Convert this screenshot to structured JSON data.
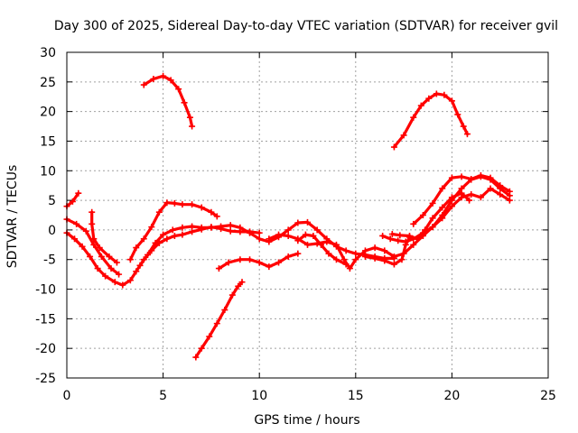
{
  "chart_data": {
    "type": "scatter",
    "title": "Day 300 of 2025, Sidereal Day-to-day VTEC variation (SDTVAR) for receiver gvil",
    "xlabel": "GPS time / hours",
    "ylabel": "SDTVAR / TECUs",
    "xlim": [
      0,
      25
    ],
    "ylim": [
      -25,
      30
    ],
    "xticks": [
      0,
      5,
      10,
      15,
      20,
      25
    ],
    "yticks": [
      -25,
      -20,
      -15,
      -10,
      -5,
      0,
      5,
      10,
      15,
      20,
      25,
      30
    ],
    "grid": true,
    "marker": "+",
    "color": "#ff0000",
    "series": [
      {
        "name": "s1",
        "points": [
          [
            0.0,
            4.0
          ],
          [
            0.3,
            4.8
          ],
          [
            0.6,
            6.2
          ]
        ]
      },
      {
        "name": "s2",
        "points": [
          [
            0.0,
            1.8
          ],
          [
            0.5,
            1.0
          ],
          [
            1.0,
            -0.2
          ],
          [
            1.4,
            -2.5
          ],
          [
            1.8,
            -4.5
          ],
          [
            2.3,
            -6.5
          ],
          [
            2.7,
            -7.5
          ]
        ]
      },
      {
        "name": "s3",
        "points": [
          [
            0.0,
            -0.5
          ],
          [
            0.4,
            -1.5
          ],
          [
            0.8,
            -2.8
          ],
          [
            1.2,
            -4.5
          ],
          [
            1.6,
            -6.5
          ],
          [
            2.0,
            -7.8
          ],
          [
            2.5,
            -8.8
          ],
          [
            2.9,
            -9.3
          ],
          [
            3.3,
            -8.5
          ],
          [
            3.6,
            -7.0
          ],
          [
            4.0,
            -5.0
          ],
          [
            4.4,
            -3.5
          ],
          [
            4.8,
            -2.2
          ],
          [
            5.2,
            -1.5
          ],
          [
            5.6,
            -1.0
          ],
          [
            6.0,
            -0.8
          ],
          [
            6.5,
            -0.3
          ],
          [
            7.0,
            0.1
          ],
          [
            7.5,
            0.5
          ],
          [
            8.0,
            0.2
          ],
          [
            8.5,
            -0.2
          ],
          [
            9.0,
            -0.3
          ],
          [
            9.5,
            -0.3
          ],
          [
            10.0,
            -0.5
          ]
        ]
      },
      {
        "name": "s4",
        "points": [
          [
            1.3,
            3.0
          ],
          [
            1.3,
            1.0
          ],
          [
            1.4,
            -1.5
          ],
          [
            1.7,
            -3.0
          ],
          [
            2.2,
            -4.5
          ],
          [
            2.6,
            -5.5
          ]
        ]
      },
      {
        "name": "s5",
        "points": [
          [
            3.3,
            -5.0
          ],
          [
            3.6,
            -3.0
          ],
          [
            4.0,
            -1.5
          ],
          [
            4.4,
            0.5
          ],
          [
            4.8,
            3.0
          ],
          [
            5.2,
            4.6
          ],
          [
            5.6,
            4.5
          ],
          [
            6.0,
            4.3
          ],
          [
            6.5,
            4.3
          ],
          [
            7.0,
            3.8
          ],
          [
            7.5,
            3.0
          ],
          [
            7.8,
            2.3
          ]
        ]
      },
      {
        "name": "s6",
        "points": [
          [
            3.8,
            -6.0
          ],
          [
            4.2,
            -4.2
          ],
          [
            4.6,
            -2.2
          ],
          [
            5.0,
            -0.8
          ],
          [
            5.5,
            0.0
          ],
          [
            6.0,
            0.4
          ],
          [
            6.5,
            0.6
          ],
          [
            7.0,
            0.4
          ],
          [
            7.5,
            0.4
          ],
          [
            8.0,
            0.6
          ],
          [
            8.5,
            0.8
          ],
          [
            9.0,
            0.4
          ],
          [
            9.5,
            -0.5
          ],
          [
            10.0,
            -1.5
          ],
          [
            10.5,
            -2.0
          ],
          [
            11.0,
            -1.2
          ],
          [
            11.5,
            0.0
          ],
          [
            12.0,
            1.2
          ],
          [
            12.5,
            1.3
          ],
          [
            13.0,
            0.0
          ],
          [
            13.5,
            -1.5
          ],
          [
            14.0,
            -2.8
          ],
          [
            14.5,
            -3.5
          ],
          [
            15.0,
            -4.0
          ],
          [
            15.5,
            -4.2
          ],
          [
            16.0,
            -4.5
          ],
          [
            16.5,
            -4.8
          ],
          [
            17.0,
            -4.8
          ]
        ]
      },
      {
        "name": "s7",
        "points": [
          [
            4.0,
            24.5
          ],
          [
            4.5,
            25.5
          ],
          [
            5.0,
            26.0
          ],
          [
            5.4,
            25.3
          ],
          [
            5.8,
            23.8
          ],
          [
            6.1,
            21.5
          ],
          [
            6.4,
            19.0
          ],
          [
            6.5,
            17.5
          ]
        ]
      },
      {
        "name": "s8",
        "points": [
          [
            6.7,
            -21.5
          ],
          [
            7.0,
            -20.0
          ],
          [
            7.4,
            -18.0
          ],
          [
            7.8,
            -15.8
          ],
          [
            8.2,
            -13.5
          ],
          [
            8.6,
            -11.0
          ],
          [
            8.9,
            -9.5
          ],
          [
            9.1,
            -8.8
          ]
        ]
      },
      {
        "name": "s9",
        "points": [
          [
            7.9,
            -6.5
          ],
          [
            8.4,
            -5.5
          ],
          [
            9.0,
            -5.0
          ],
          [
            9.5,
            -5.0
          ],
          [
            10.0,
            -5.5
          ],
          [
            10.5,
            -6.2
          ],
          [
            11.0,
            -5.5
          ],
          [
            11.5,
            -4.5
          ],
          [
            12.0,
            -4.0
          ]
        ]
      },
      {
        "name": "s10",
        "points": [
          [
            10.5,
            -1.5
          ],
          [
            11.0,
            -0.8
          ],
          [
            11.5,
            -1.0
          ],
          [
            12.0,
            -1.5
          ],
          [
            12.5,
            -2.5
          ],
          [
            13.0,
            -2.3
          ],
          [
            13.5,
            -2.0
          ],
          [
            14.0,
            -2.5
          ],
          [
            14.4,
            -5.0
          ],
          [
            14.7,
            -6.5
          ],
          [
            15.0,
            -5.0
          ],
          [
            15.5,
            -3.5
          ],
          [
            16.0,
            -3.0
          ],
          [
            16.5,
            -3.5
          ],
          [
            17.0,
            -4.5
          ],
          [
            17.5,
            -4.0
          ],
          [
            18.0,
            -2.5
          ],
          [
            18.5,
            -1.0
          ],
          [
            19.0,
            0.5
          ],
          [
            19.5,
            2.0
          ],
          [
            20.0,
            4.0
          ],
          [
            20.5,
            5.5
          ],
          [
            21.0,
            6.0
          ],
          [
            21.5,
            5.5
          ],
          [
            22.0,
            7.0
          ],
          [
            22.5,
            6.0
          ],
          [
            23.0,
            5.0
          ]
        ]
      },
      {
        "name": "s11",
        "points": [
          [
            12.0,
            -1.8
          ],
          [
            12.4,
            -0.8
          ],
          [
            12.8,
            -1.0
          ],
          [
            13.2,
            -2.5
          ],
          [
            13.6,
            -4.0
          ],
          [
            14.0,
            -5.0
          ],
          [
            14.5,
            -5.8
          ]
        ]
      },
      {
        "name": "s12",
        "points": [
          [
            15.5,
            -4.5
          ],
          [
            16.0,
            -4.8
          ],
          [
            16.5,
            -5.2
          ],
          [
            17.0,
            -5.8
          ],
          [
            17.4,
            -5.0
          ],
          [
            17.6,
            -2.5
          ],
          [
            17.8,
            -1.2
          ],
          [
            18.2,
            -1.5
          ],
          [
            18.6,
            0.0
          ],
          [
            19.0,
            2.0
          ],
          [
            19.5,
            3.8
          ],
          [
            20.0,
            5.5
          ],
          [
            20.5,
            6.2
          ],
          [
            20.9,
            5.0
          ]
        ]
      },
      {
        "name": "s13",
        "points": [
          [
            16.4,
            -1.0
          ],
          [
            16.8,
            -1.5
          ],
          [
            17.2,
            -1.8
          ],
          [
            17.6,
            -2.0
          ],
          [
            18.0,
            -1.5
          ],
          [
            18.5,
            -0.5
          ],
          [
            19.0,
            0.5
          ],
          [
            19.5,
            2.5
          ],
          [
            20.0,
            5.0
          ],
          [
            20.5,
            7.0
          ],
          [
            21.0,
            8.5
          ],
          [
            21.5,
            9.0
          ],
          [
            22.0,
            8.5
          ],
          [
            22.5,
            7.0
          ],
          [
            23.0,
            5.8
          ]
        ]
      },
      {
        "name": "s14",
        "points": [
          [
            16.9,
            -0.7
          ],
          [
            17.3,
            -0.9
          ],
          [
            17.8,
            -1.0
          ]
        ]
      },
      {
        "name": "s15",
        "points": [
          [
            17.0,
            14.0
          ],
          [
            17.5,
            16.0
          ],
          [
            18.0,
            19.0
          ],
          [
            18.4,
            21.0
          ],
          [
            18.8,
            22.2
          ],
          [
            19.2,
            23.0
          ],
          [
            19.6,
            22.8
          ],
          [
            20.0,
            21.8
          ],
          [
            20.3,
            19.5
          ],
          [
            20.6,
            17.5
          ],
          [
            20.8,
            16.2
          ]
        ]
      },
      {
        "name": "s16",
        "points": [
          [
            18.0,
            1.0
          ],
          [
            18.5,
            2.5
          ],
          [
            19.0,
            4.5
          ],
          [
            19.5,
            7.0
          ],
          [
            20.0,
            8.8
          ],
          [
            20.5,
            9.0
          ],
          [
            21.0,
            8.6
          ],
          [
            21.5,
            9.2
          ],
          [
            22.0,
            8.8
          ],
          [
            22.5,
            7.5
          ],
          [
            23.0,
            6.5
          ]
        ]
      }
    ]
  }
}
